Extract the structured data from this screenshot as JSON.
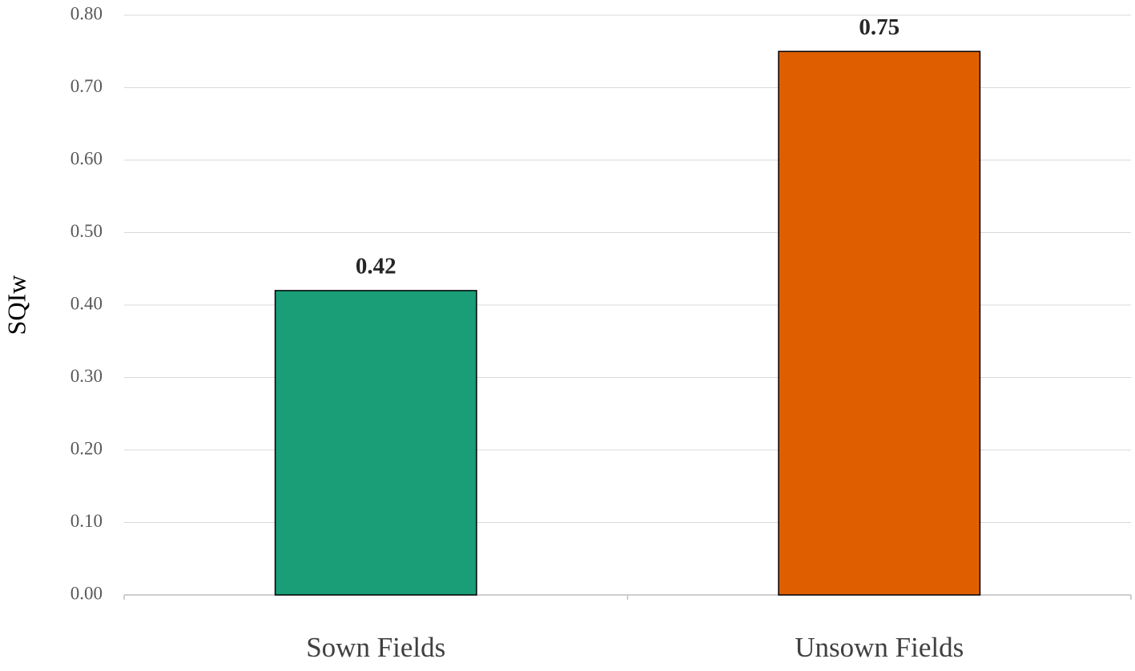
{
  "chart_data": {
    "type": "bar",
    "y_label": "SQIw",
    "categories": [
      "Sown Fields",
      "Unsown Fields"
    ],
    "values": [
      0.42,
      0.75
    ],
    "colors": [
      "#1a9e77",
      "#df5f00"
    ],
    "ylim": [
      0,
      0.8
    ],
    "yticks": [
      {
        "value": 0,
        "label": "0.00"
      },
      {
        "value": 0.1,
        "label": "0.10"
      },
      {
        "value": 0.2,
        "label": "0.20"
      },
      {
        "value": 0.3,
        "label": "0.30"
      },
      {
        "value": 0.4,
        "label": "0.40"
      },
      {
        "value": 0.5,
        "label": "0.50"
      },
      {
        "value": 0.6,
        "label": "0.60"
      },
      {
        "value": 0.7,
        "label": "0.70"
      },
      {
        "value": 0.8,
        "label": "0.80"
      }
    ],
    "grid": true
  }
}
